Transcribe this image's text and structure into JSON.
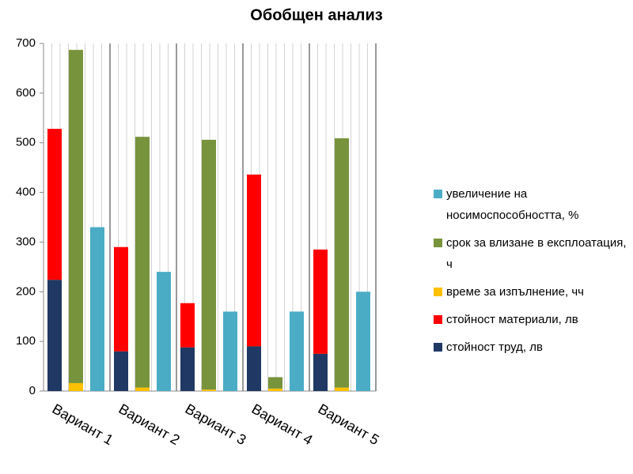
{
  "chart_data": {
    "type": "stacked-grouped-bar",
    "title": "Обобщен анализ",
    "categories": [
      "Вариант 1",
      "Вариант 2",
      "Вариант 3",
      "Вариант 4",
      "Вариант 5"
    ],
    "series": [
      {
        "name": "стойност труд, лв",
        "color": "#1f3864",
        "stack": 0,
        "values": [
          224,
          80,
          88,
          90,
          75
        ]
      },
      {
        "name": "стойност материали, лв",
        "color": "#ff0000",
        "stack": 0,
        "values": [
          304,
          210,
          89,
          346,
          210
        ]
      },
      {
        "name": "време за изпълнение, чч",
        "color": "#ffc000",
        "stack": 1,
        "values": [
          16,
          7,
          3,
          5,
          7
        ]
      },
      {
        "name": "срок за влизане в експлоатация, ч",
        "color": "#77933c",
        "stack": 1,
        "values": [
          671,
          505,
          503,
          23,
          502
        ]
      },
      {
        "name": "увеличение на носимоспособността, %",
        "color": "#4bacc6",
        "stack": 2,
        "values": [
          330,
          240,
          160,
          160,
          200
        ]
      }
    ],
    "ylim": [
      0,
      700
    ],
    "yticks": [
      0,
      100,
      200,
      300,
      400,
      500,
      600,
      700
    ],
    "grid": true
  }
}
